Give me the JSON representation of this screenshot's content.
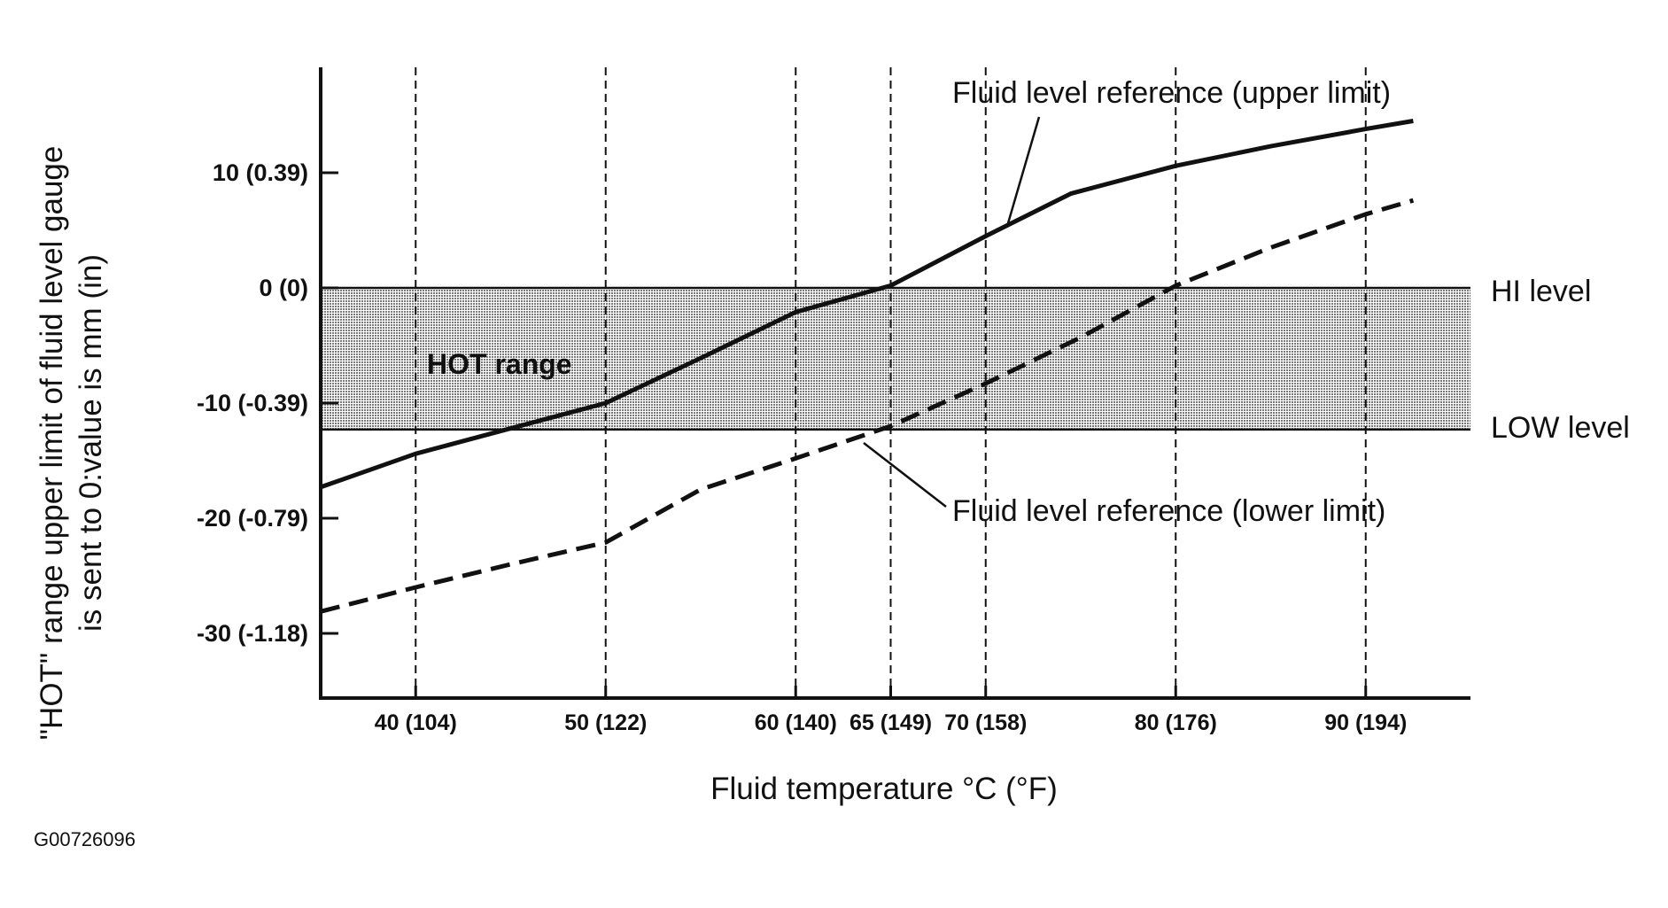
{
  "chart_data": {
    "type": "line",
    "xlabel": "Fluid temperature °C (°F)",
    "ylabel_lines": [
      "\"HOT\" range upper limit of fluid level gauge",
      "is sent to 0:value is mm (in)"
    ],
    "xlim": [
      35,
      96
    ],
    "ylim": [
      -35,
      19
    ],
    "x_ticks": [
      {
        "value": 40,
        "label": "40 (104)"
      },
      {
        "value": 50,
        "label": "50 (122)"
      },
      {
        "value": 60,
        "label": "60 (140)"
      },
      {
        "value": 65,
        "label": "65 (149)"
      },
      {
        "value": 70,
        "label": "70 (158)"
      },
      {
        "value": 80,
        "label": "80 (176)"
      },
      {
        "value": 90,
        "label": "90 (194)"
      }
    ],
    "y_ticks": [
      {
        "value": 10,
        "label": "10 (0.39)"
      },
      {
        "value": 0,
        "label": "0 (0)"
      },
      {
        "value": -10,
        "label": "-10 (-0.39)"
      },
      {
        "value": -20,
        "label": "-20 (-0.79)"
      },
      {
        "value": -30,
        "label": "-30 (-1.18)"
      }
    ],
    "band": {
      "label": "HOT range",
      "from": -12.3,
      "to": 0
    },
    "levels": [
      {
        "label": "HI level",
        "value": 0
      },
      {
        "label": "LOW level",
        "value": -12.3
      }
    ],
    "series": [
      {
        "name": "Fluid level reference (upper limit)",
        "style": "solid",
        "x": [
          35,
          40,
          45,
          50,
          55,
          60,
          65,
          70,
          74.5,
          80,
          85,
          90,
          92.5
        ],
        "y": [
          -17.3,
          -14.4,
          -12.2,
          -10.0,
          -6.1,
          -2.1,
          0.2,
          4.5,
          8.2,
          10.6,
          12.3,
          13.8,
          14.5
        ]
      },
      {
        "name": "Fluid level reference (lower limit)",
        "style": "dashed",
        "x": [
          35,
          40,
          45,
          50,
          55,
          60,
          65,
          70,
          75,
          80,
          85,
          90,
          92.5
        ],
        "y": [
          -28.1,
          -26.0,
          -24.0,
          -22.1,
          -17.5,
          -14.8,
          -12.0,
          -8.3,
          -4.3,
          0.2,
          3.5,
          6.4,
          7.6
        ]
      }
    ],
    "annotations": [
      "Fluid level reference (upper limit)",
      "Fluid level reference (lower limit)"
    ]
  },
  "figure_id": "G00726096",
  "colors": {
    "ink": "#111111",
    "band_fill": "#8f8f8f",
    "background": "#ffffff"
  }
}
